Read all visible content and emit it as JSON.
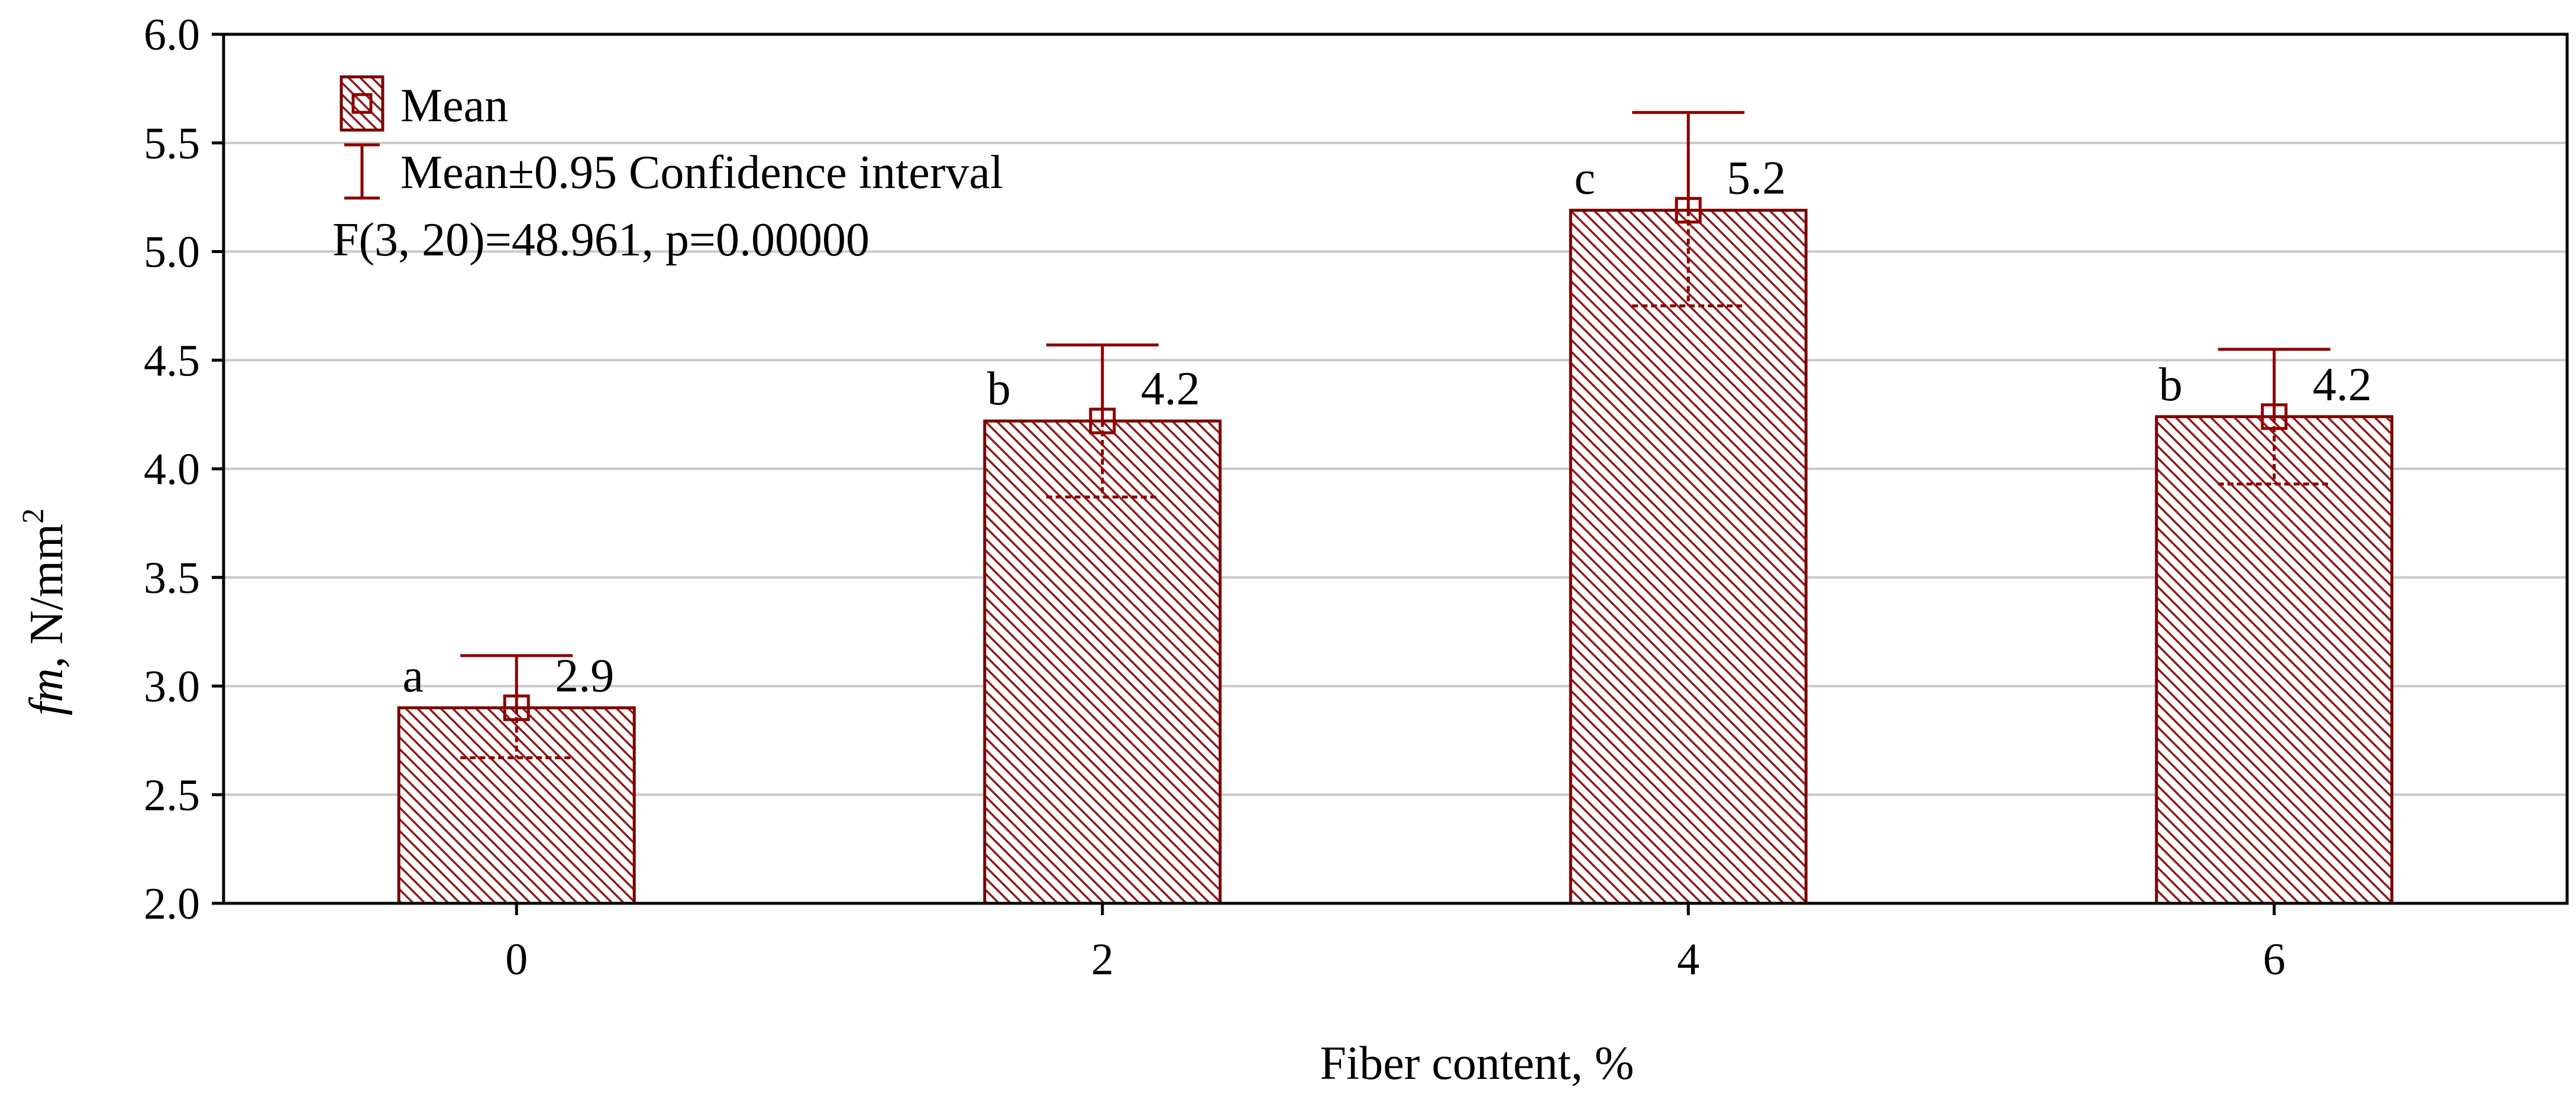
{
  "chart_data": {
    "type": "bar",
    "categories": [
      "0",
      "2",
      "4",
      "6"
    ],
    "values": [
      2.9,
      4.22,
      5.19,
      4.24
    ],
    "ci_upper": [
      3.14,
      4.57,
      5.64,
      4.55
    ],
    "ci_lower": [
      2.67,
      3.87,
      4.75,
      3.93
    ],
    "value_labels": [
      "2.9",
      "4.2",
      "5.2",
      "4.2"
    ],
    "group_letters": [
      "a",
      "b",
      "c",
      "b"
    ],
    "xlabel": "Fiber content, %",
    "ylabel_italic": "fm,",
    "ylabel_unit": "N/mm",
    "ylabel_sup": "2",
    "ylim": [
      2.0,
      6.0
    ],
    "yticks": [
      "2.0",
      "2.5",
      "3.0",
      "3.5",
      "4.0",
      "4.5",
      "5.0",
      "5.5",
      "6.0"
    ],
    "ytick_values": [
      2.0,
      2.5,
      3.0,
      3.5,
      4.0,
      4.5,
      5.0,
      5.5,
      6.0
    ],
    "grid": true,
    "legend": {
      "placement": "top-left",
      "mean_label": "Mean",
      "ci_label": "Mean±0.95 Confidence interval",
      "stats_text": "F(3, 20)=48.961, p=0.00000"
    },
    "colors": {
      "bar_stroke": "#7a0000",
      "bar_hatch": "#8b1a1a",
      "error_bar": "#8b0000",
      "grid": "#c8c8c8",
      "axis": "#000000"
    }
  }
}
